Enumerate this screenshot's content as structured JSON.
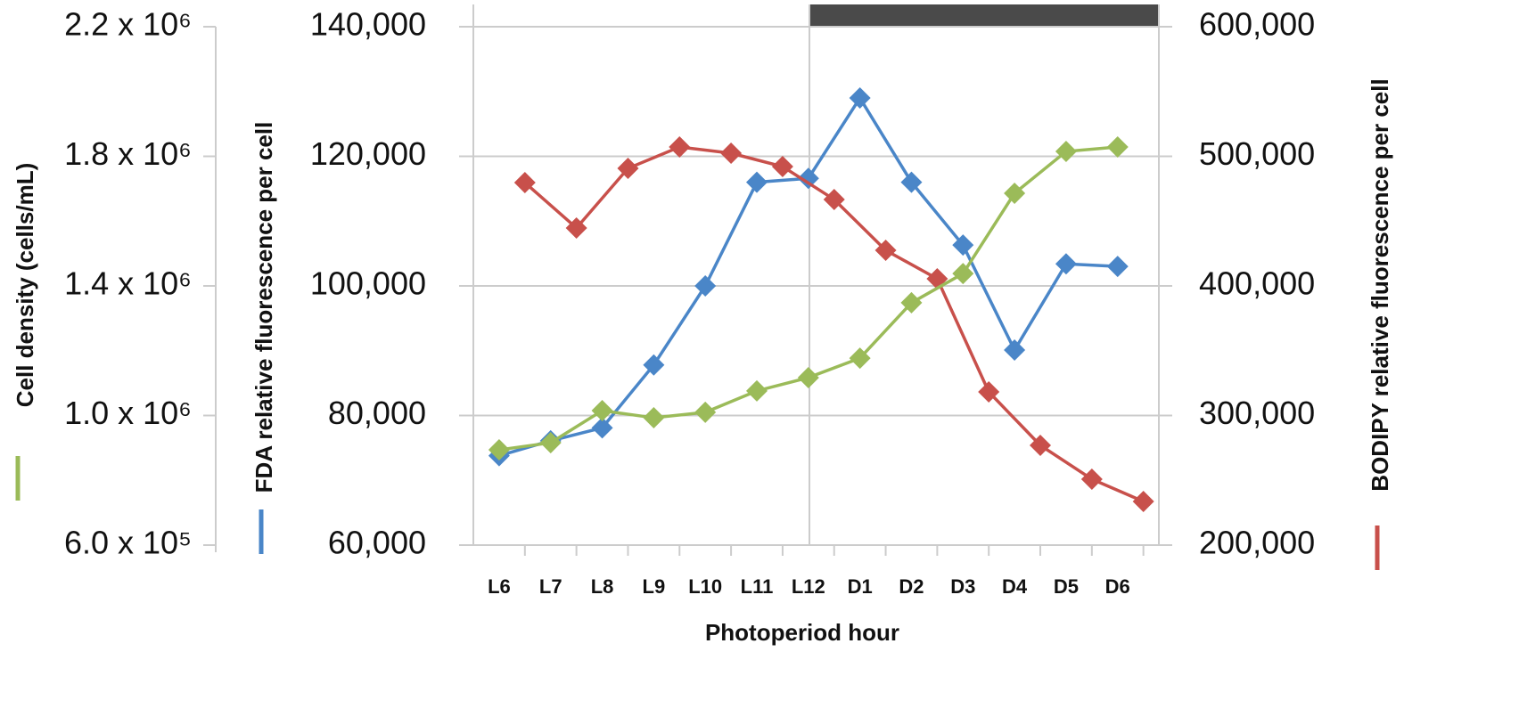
{
  "chart_data": {
    "type": "line",
    "x_label": "Photoperiod hour",
    "y_label": "FDA relative fluorescence per cell",
    "y2_label": "BODIPY relative fluorescence per cell",
    "y3_label": "Cell density (cells/mL)",
    "xlim": [
      -0.5,
      12.8
    ],
    "xticks": [
      {
        "value": 0,
        "label": "L6"
      },
      {
        "value": 1,
        "label": "L7"
      },
      {
        "value": 2,
        "label": "L8"
      },
      {
        "value": 3,
        "label": "L9"
      },
      {
        "value": 4,
        "label": "L10"
      },
      {
        "value": 5,
        "label": "L11"
      },
      {
        "value": 6,
        "label": "L12"
      },
      {
        "value": 7,
        "label": "D1"
      },
      {
        "value": 8,
        "label": "D2"
      },
      {
        "value": 9,
        "label": "D3"
      },
      {
        "value": 10,
        "label": "D4"
      },
      {
        "value": 11,
        "label": "D5"
      },
      {
        "value": 12,
        "label": "D6"
      }
    ],
    "ylim": [
      60000,
      140000
    ],
    "yticks": [
      {
        "value": 60000,
        "label": "60,000"
      },
      {
        "value": 80000,
        "label": "80,000"
      },
      {
        "value": 100000,
        "label": "100,000"
      },
      {
        "value": 120000,
        "label": "120,000"
      },
      {
        "value": 140000,
        "label": "140,000"
      }
    ],
    "y2lim": [
      200000,
      600000
    ],
    "y2ticks": [
      {
        "value": 200000,
        "label": "200,000"
      },
      {
        "value": 300000,
        "label": "300,000"
      },
      {
        "value": 400000,
        "label": "400,000"
      },
      {
        "value": 500000,
        "label": "500,000"
      },
      {
        "value": 600000,
        "label": "600,000"
      }
    ],
    "y3lim": [
      600000,
      2200000
    ],
    "y3ticks": [
      {
        "value": 600000,
        "label": "6.0 x 10⁵"
      },
      {
        "value": 1000000,
        "label": "1.0 x 10⁶"
      },
      {
        "value": 1400000,
        "label": "1.4 x 10⁶"
      },
      {
        "value": 1800000,
        "label": "1.8 x 10⁶"
      },
      {
        "value": 2200000,
        "label": "2.2 x 10⁶"
      }
    ],
    "grid": true,
    "series": [
      {
        "axis": "y",
        "color": "#4a86c8",
        "x": [
          0,
          1,
          2,
          3,
          4,
          5,
          6,
          7,
          8,
          9,
          10,
          11,
          12
        ],
        "values": [
          73800,
          76100,
          78100,
          87800,
          100000,
          116000,
          116600,
          129000,
          116000,
          106300,
          90100,
          103400,
          103000
        ]
      },
      {
        "axis": "y2",
        "color": "#c8504b",
        "x": [
          0.5,
          1.5,
          2.5,
          3.5,
          4.5,
          5.5,
          6.5,
          7.5,
          8.5,
          9.5,
          10.5,
          11.5,
          12.5
        ],
        "values": [
          479700,
          444700,
          490700,
          507200,
          502400,
          492100,
          466700,
          427500,
          405500,
          318200,
          277000,
          250900,
          233700
        ]
      },
      {
        "axis": "y3",
        "color": "#9bbb59",
        "x": [
          0,
          1,
          2,
          3,
          4,
          5,
          6,
          7,
          8,
          9,
          10,
          11,
          12
        ],
        "values": [
          894000,
          916000,
          1015000,
          993000,
          1010000,
          1076000,
          1117000,
          1177000,
          1348000,
          1438000,
          1686000,
          1815000,
          1829000
        ]
      }
    ]
  }
}
